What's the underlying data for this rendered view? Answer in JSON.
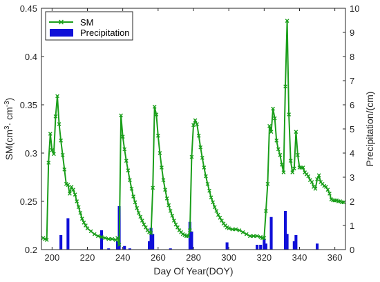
{
  "chart_data": {
    "type": "line",
    "xlabel": "Day Of Year(DOY)",
    "ylabel_left_parts": {
      "a": "SM(cm",
      "sup1": "3",
      "b": "· cm",
      "sup2": "-3",
      "c": ")"
    },
    "ylabel_right": "Precipitation/(cm)",
    "xlim": [
      194,
      366
    ],
    "ylim_left": [
      0.2,
      0.45
    ],
    "ylim_right": [
      0,
      10
    ],
    "x_ticks": [
      200,
      220,
      240,
      260,
      280,
      300,
      320,
      340,
      360
    ],
    "y_left_ticks": [
      "0.2",
      "0.25",
      "0.3",
      "0.35",
      "0.4",
      "0.45"
    ],
    "y_right_ticks": [
      "0",
      "1",
      "2",
      "3",
      "4",
      "5",
      "6",
      "7",
      "8",
      "9",
      "10"
    ],
    "legend": {
      "placement": "top-left",
      "entries": [
        "SM",
        "Precipitation"
      ]
    },
    "colors": {
      "sm": "#1a9e1a",
      "precip": "#1010d8"
    },
    "series": [
      {
        "name": "SM",
        "axis": "left",
        "kind": "line",
        "points": [
          [
            195,
            0.212
          ],
          [
            196,
            0.211
          ],
          [
            197,
            0.21
          ],
          [
            198,
            0.29
          ],
          [
            199,
            0.32
          ],
          [
            200,
            0.303
          ],
          [
            201,
            0.299
          ],
          [
            202,
            0.338
          ],
          [
            203,
            0.359
          ],
          [
            204,
            0.33
          ],
          [
            205,
            0.313
          ],
          [
            206,
            0.298
          ],
          [
            207,
            0.283
          ],
          [
            208,
            0.268
          ],
          [
            209,
            0.267
          ],
          [
            210,
            0.258
          ],
          [
            211,
            0.265
          ],
          [
            212,
            0.262
          ],
          [
            213,
            0.257
          ],
          [
            214,
            0.25
          ],
          [
            215,
            0.244
          ],
          [
            216,
            0.238
          ],
          [
            217,
            0.232
          ],
          [
            218,
            0.228
          ],
          [
            219,
            0.225
          ],
          [
            220,
            0.222
          ],
          [
            222,
            0.219
          ],
          [
            224,
            0.216
          ],
          [
            226,
            0.214
          ],
          [
            228,
            0.213
          ],
          [
            230,
            0.212
          ],
          [
            232,
            0.211
          ],
          [
            234,
            0.211
          ],
          [
            236,
            0.21
          ],
          [
            237,
            0.212
          ],
          [
            238,
            0.205
          ],
          [
            239,
            0.339
          ],
          [
            240,
            0.317
          ],
          [
            241,
            0.304
          ],
          [
            242,
            0.292
          ],
          [
            243,
            0.282
          ],
          [
            244,
            0.272
          ],
          [
            245,
            0.263
          ],
          [
            246,
            0.255
          ],
          [
            247,
            0.249
          ],
          [
            248,
            0.243
          ],
          [
            249,
            0.238
          ],
          [
            250,
            0.234
          ],
          [
            251,
            0.23
          ],
          [
            252,
            0.226
          ],
          [
            253,
            0.223
          ],
          [
            254,
            0.22
          ],
          [
            255,
            0.218
          ],
          [
            256,
            0.217
          ],
          [
            257,
            0.264
          ],
          [
            258,
            0.348
          ],
          [
            259,
            0.34
          ],
          [
            260,
            0.318
          ],
          [
            261,
            0.3
          ],
          [
            262,
            0.285
          ],
          [
            263,
            0.272
          ],
          [
            264,
            0.262
          ],
          [
            265,
            0.253
          ],
          [
            266,
            0.246
          ],
          [
            267,
            0.24
          ],
          [
            268,
            0.235
          ],
          [
            269,
            0.23
          ],
          [
            270,
            0.226
          ],
          [
            271,
            0.223
          ],
          [
            272,
            0.22
          ],
          [
            273,
            0.218
          ],
          [
            274,
            0.216
          ],
          [
            275,
            0.215
          ],
          [
            276,
            0.214
          ],
          [
            277,
            0.214
          ],
          [
            278,
            0.22
          ],
          [
            279,
            0.296
          ],
          [
            280,
            0.329
          ],
          [
            281,
            0.334
          ],
          [
            282,
            0.33
          ],
          [
            283,
            0.318
          ],
          [
            284,
            0.306
          ],
          [
            285,
            0.295
          ],
          [
            286,
            0.285
          ],
          [
            287,
            0.276
          ],
          [
            288,
            0.268
          ],
          [
            289,
            0.261
          ],
          [
            290,
            0.254
          ],
          [
            291,
            0.249
          ],
          [
            292,
            0.244
          ],
          [
            293,
            0.24
          ],
          [
            294,
            0.236
          ],
          [
            295,
            0.233
          ],
          [
            296,
            0.23
          ],
          [
            297,
            0.227
          ],
          [
            298,
            0.225
          ],
          [
            299,
            0.223
          ],
          [
            300,
            0.222
          ],
          [
            302,
            0.221
          ],
          [
            304,
            0.221
          ],
          [
            306,
            0.22
          ],
          [
            308,
            0.218
          ],
          [
            310,
            0.216
          ],
          [
            312,
            0.214
          ],
          [
            314,
            0.214
          ],
          [
            316,
            0.214
          ],
          [
            318,
            0.213
          ],
          [
            319,
            0.212
          ],
          [
            320,
            0.212
          ],
          [
            321,
            0.24
          ],
          [
            322,
            0.268
          ],
          [
            323,
            0.328
          ],
          [
            324,
            0.322
          ],
          [
            325,
            0.346
          ],
          [
            326,
            0.336
          ],
          [
            327,
            0.313
          ],
          [
            328,
            0.304
          ],
          [
            329,
            0.298
          ],
          [
            330,
            0.288
          ],
          [
            331,
            0.28
          ],
          [
            332,
            0.369
          ],
          [
            333,
            0.437
          ],
          [
            334,
            0.34
          ],
          [
            335,
            0.292
          ],
          [
            336,
            0.28
          ],
          [
            337,
            0.284
          ],
          [
            338,
            0.322
          ],
          [
            339,
            0.298
          ],
          [
            340,
            0.285
          ],
          [
            341,
            0.285
          ],
          [
            342,
            0.285
          ],
          [
            343,
            0.28
          ],
          [
            344,
            0.278
          ],
          [
            345,
            0.276
          ],
          [
            346,
            0.272
          ],
          [
            347,
            0.27
          ],
          [
            348,
            0.265
          ],
          [
            349,
            0.263
          ],
          [
            350,
            0.273
          ],
          [
            351,
            0.277
          ],
          [
            352,
            0.27
          ],
          [
            353,
            0.268
          ],
          [
            354,
            0.266
          ],
          [
            355,
            0.265
          ],
          [
            356,
            0.262
          ],
          [
            357,
            0.258
          ],
          [
            358,
            0.252
          ],
          [
            359,
            0.251
          ],
          [
            360,
            0.251
          ],
          [
            361,
            0.251
          ],
          [
            362,
            0.25
          ],
          [
            363,
            0.25
          ],
          [
            364,
            0.249
          ],
          [
            365,
            0.249
          ]
        ]
      },
      {
        "name": "Precipitation",
        "axis": "right",
        "kind": "bar",
        "points": [
          [
            205,
            0.6
          ],
          [
            209,
            1.3
          ],
          [
            228,
            0.8
          ],
          [
            232,
            0.05
          ],
          [
            238,
            1.8
          ],
          [
            237,
            0.35
          ],
          [
            241,
            0.15
          ],
          [
            244,
            0.05
          ],
          [
            255,
            0.35
          ],
          [
            256,
            0.9
          ],
          [
            257,
            0.65
          ],
          [
            267,
            0.05
          ],
          [
            278,
            1.15
          ],
          [
            279,
            0.75
          ],
          [
            299,
            0.3
          ],
          [
            316,
            0.2
          ],
          [
            318,
            0.2
          ],
          [
            320,
            0.45
          ],
          [
            321,
            0.25
          ],
          [
            324,
            1.35
          ],
          [
            332,
            1.6
          ],
          [
            333,
            0.65
          ],
          [
            337,
            0.35
          ],
          [
            338,
            0.6
          ],
          [
            350,
            0.25
          ]
        ]
      }
    ]
  }
}
